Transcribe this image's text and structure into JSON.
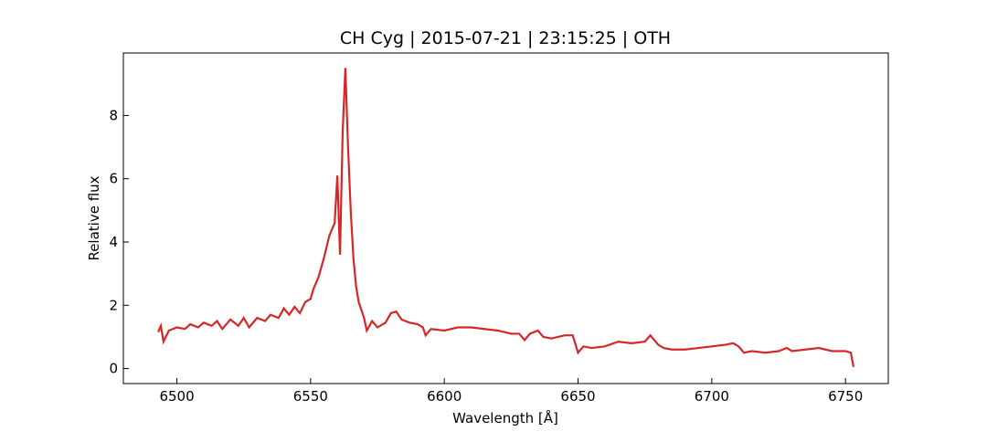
{
  "chart_data": {
    "type": "line",
    "title": "CH Cyg | 2015-07-21 | 23:15:25 | OTH",
    "xlabel": "Wavelength [Å]",
    "ylabel": "Relative flux",
    "x": [
      6493,
      6494,
      6495,
      6497,
      6500,
      6503,
      6505,
      6508,
      6510,
      6513,
      6515,
      6517,
      6520,
      6523,
      6525,
      6527,
      6530,
      6533,
      6535,
      6538,
      6540,
      6542,
      6544,
      6546,
      6548,
      6550,
      6551,
      6553,
      6555,
      6557,
      6559,
      6560,
      6561,
      6562,
      6563,
      6564,
      6565,
      6566,
      6567,
      6568,
      6570,
      6571,
      6573,
      6575,
      6578,
      6580,
      6582,
      6584,
      6587,
      6590,
      6592,
      6593,
      6595,
      6600,
      6605,
      6610,
      6615,
      6620,
      6625,
      6628,
      6630,
      6632,
      6635,
      6637,
      6640,
      6645,
      6648,
      6650,
      6652,
      6655,
      6660,
      6665,
      6670,
      6675,
      6677,
      6680,
      6682,
      6685,
      6690,
      6695,
      6700,
      6705,
      6708,
      6710,
      6712,
      6715,
      6720,
      6725,
      6728,
      6730,
      6735,
      6740,
      6745,
      6750,
      6752,
      6753
    ],
    "series": [
      {
        "name": "CH Cyg",
        "color": "#d62728",
        "values": [
          1.15,
          1.35,
          0.85,
          1.2,
          1.3,
          1.25,
          1.4,
          1.3,
          1.45,
          1.35,
          1.5,
          1.25,
          1.55,
          1.35,
          1.6,
          1.3,
          1.6,
          1.5,
          1.7,
          1.6,
          1.9,
          1.7,
          1.95,
          1.75,
          2.1,
          2.2,
          2.5,
          2.9,
          3.5,
          4.2,
          4.6,
          6.1,
          3.6,
          7.5,
          9.5,
          7.0,
          5.0,
          3.5,
          2.6,
          2.1,
          1.6,
          1.2,
          1.5,
          1.3,
          1.45,
          1.75,
          1.8,
          1.55,
          1.45,
          1.4,
          1.3,
          1.05,
          1.25,
          1.2,
          1.3,
          1.3,
          1.25,
          1.2,
          1.1,
          1.1,
          0.9,
          1.1,
          1.2,
          1.0,
          0.95,
          1.05,
          1.05,
          0.5,
          0.7,
          0.65,
          0.7,
          0.85,
          0.8,
          0.85,
          1.05,
          0.75,
          0.65,
          0.6,
          0.6,
          0.65,
          0.7,
          0.75,
          0.8,
          0.7,
          0.5,
          0.55,
          0.5,
          0.55,
          0.65,
          0.55,
          0.6,
          0.65,
          0.55,
          0.55,
          0.5,
          0.05
        ]
      }
    ],
    "xlim": [
      6480,
      6766
    ],
    "xticks": [
      6500,
      6550,
      6600,
      6650,
      6700,
      6750
    ],
    "ylim": [
      -0.475,
      9.975
    ],
    "yticks": [
      0,
      2,
      4,
      6,
      8
    ]
  }
}
